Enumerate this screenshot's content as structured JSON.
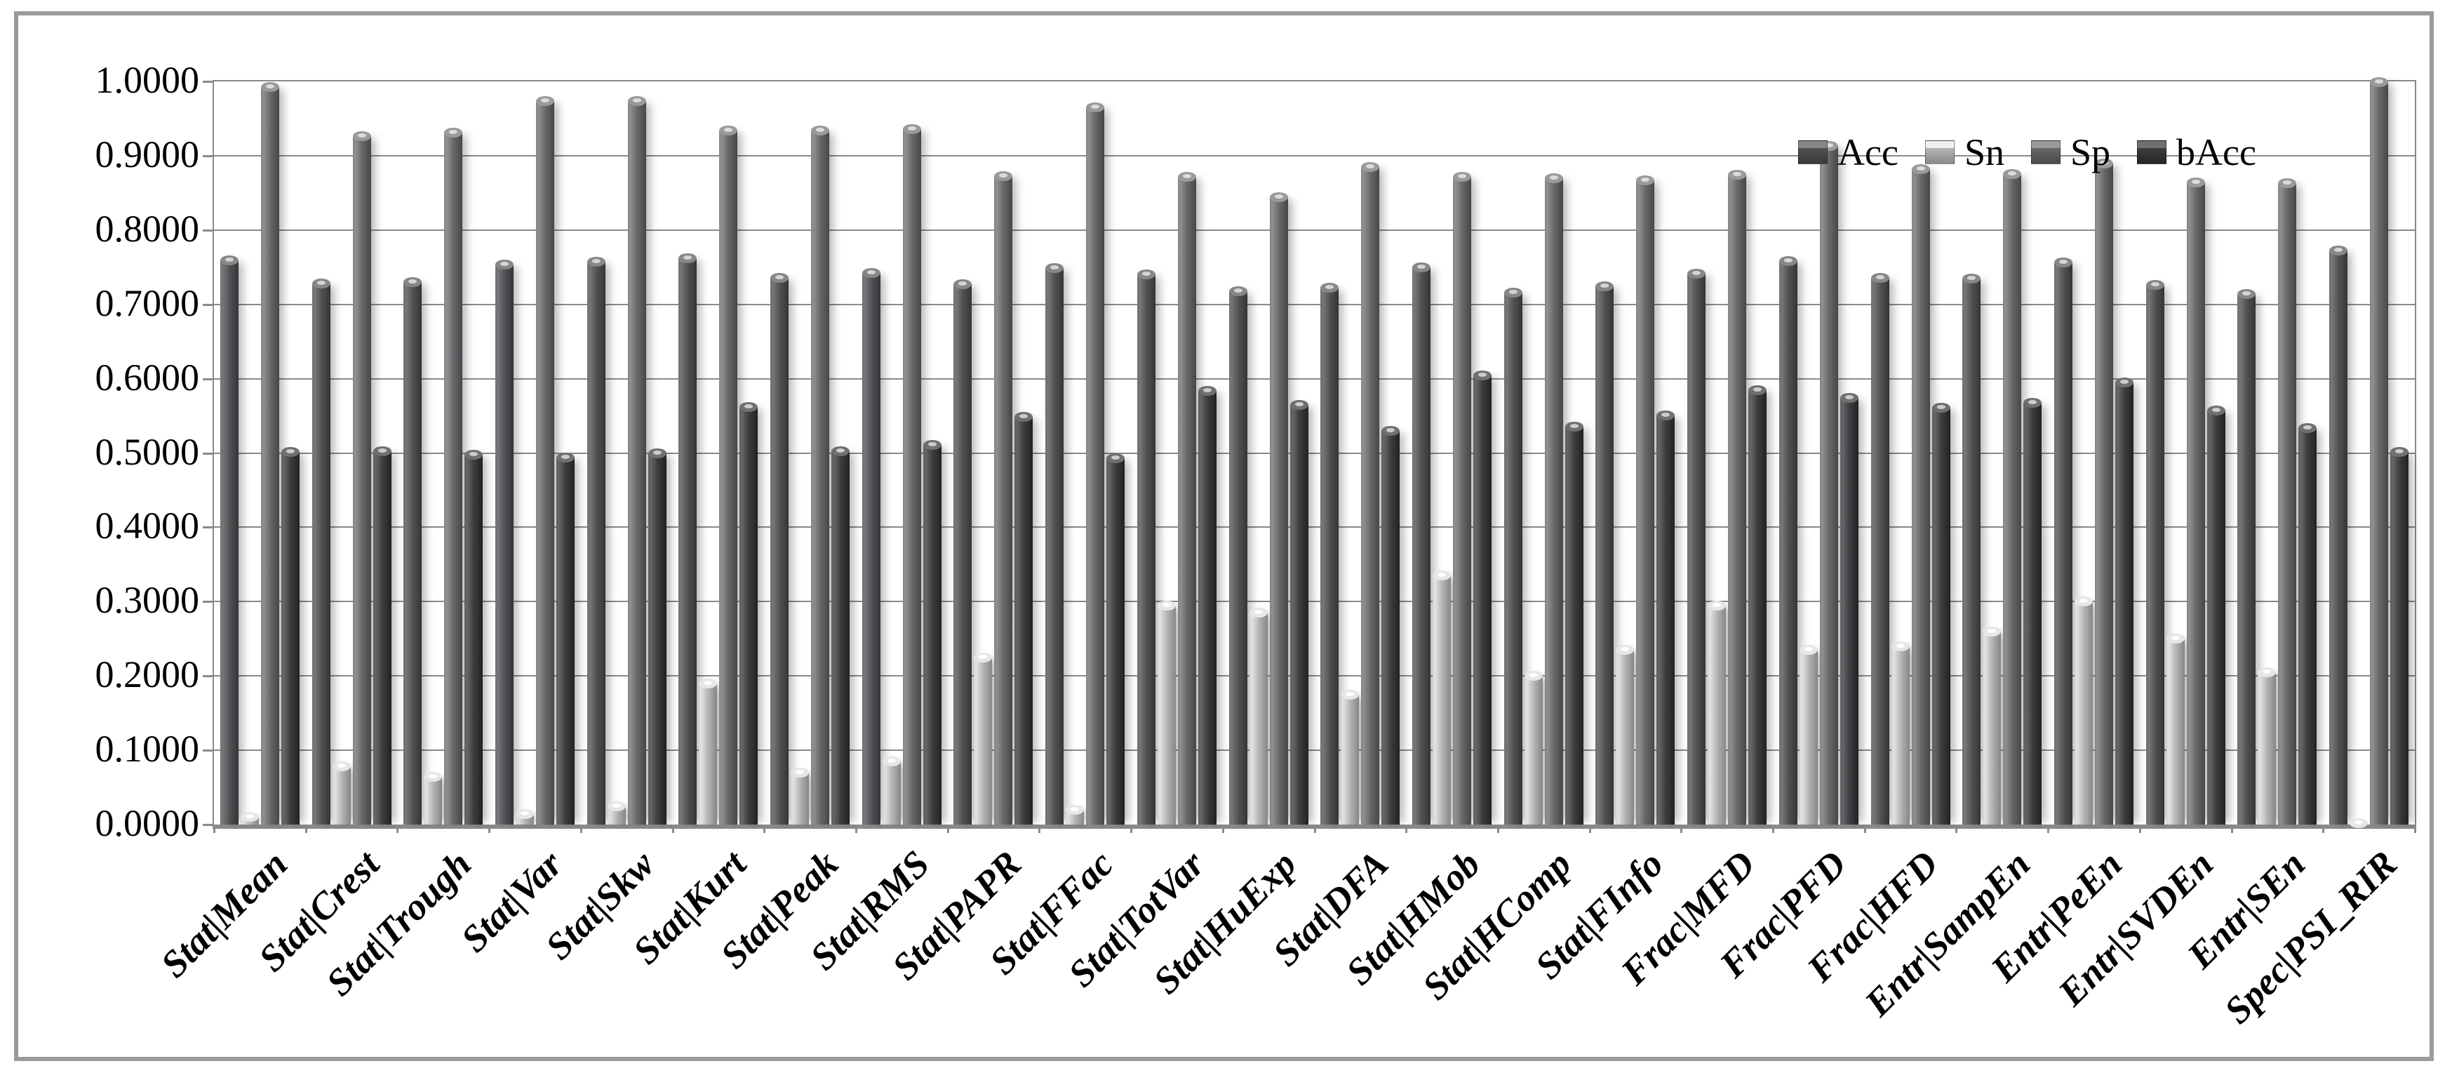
{
  "figure": {
    "background_color": "#ffffff",
    "frame_color": "#9a9a9a",
    "gridline_color": "#8a8a8a"
  },
  "chart_data": {
    "type": "bar",
    "title": "",
    "xlabel": "",
    "ylabel": "",
    "ylim": [
      0,
      1
    ],
    "grid": true,
    "legend_position": "top-right-inside",
    "ytick_labels": [
      "0.0000",
      "0.1000",
      "0.2000",
      "0.3000",
      "0.4000",
      "0.5000",
      "0.6000",
      "0.7000",
      "0.8000",
      "0.9000",
      "1.0000"
    ],
    "categories": [
      "Stat|Mean",
      "Stat|Crest",
      "Stat|Trough",
      "Stat|Var",
      "Stat|Skw",
      "Stat|Kurt",
      "Stat|Peak",
      "Stat|RMS",
      "Stat|PAPR",
      "Stat|FFac",
      "Stat|TotVar",
      "Stat|HuExp",
      "Stat|DFA",
      "Stat|HMob",
      "Stat|HComp",
      "Stat|FInfo",
      "Frac|MFD",
      "Frac|PFD",
      "Frac|HFD",
      "Entr|SampEn",
      "Entr|PeEn",
      "Entr|SVDEn",
      "Entr|SEn",
      "Spec|PSI_RIR"
    ],
    "series": [
      {
        "name": "Acc",
        "color": "#515154",
        "values": [
          0.759,
          0.728,
          0.73,
          0.754,
          0.757,
          0.762,
          0.736,
          0.742,
          0.727,
          0.749,
          0.74,
          0.718,
          0.722,
          0.75,
          0.716,
          0.724,
          0.741,
          0.758,
          0.736,
          0.735,
          0.756,
          0.726,
          0.714,
          0.772
        ]
      },
      {
        "name": "Sn",
        "color": "#b4b4b6",
        "values": [
          0.01,
          0.078,
          0.064,
          0.014,
          0.025,
          0.19,
          0.07,
          0.085,
          0.225,
          0.02,
          0.295,
          0.285,
          0.175,
          0.335,
          0.2,
          0.235,
          0.295,
          0.235,
          0.24,
          0.26,
          0.3,
          0.25,
          0.205,
          0.002
        ]
      },
      {
        "name": "Sp",
        "color": "#67676a",
        "values": [
          0.992,
          0.926,
          0.931,
          0.974,
          0.974,
          0.934,
          0.934,
          0.936,
          0.873,
          0.965,
          0.872,
          0.844,
          0.885,
          0.872,
          0.87,
          0.867,
          0.874,
          0.913,
          0.882,
          0.875,
          0.89,
          0.864,
          0.863,
          0.999
        ]
      },
      {
        "name": "bAcc",
        "color": "#3c3c3f",
        "values": [
          0.501,
          0.502,
          0.498,
          0.494,
          0.5,
          0.562,
          0.502,
          0.511,
          0.549,
          0.493,
          0.584,
          0.565,
          0.53,
          0.604,
          0.535,
          0.551,
          0.585,
          0.574,
          0.561,
          0.568,
          0.595,
          0.557,
          0.534,
          0.501
        ]
      }
    ]
  }
}
